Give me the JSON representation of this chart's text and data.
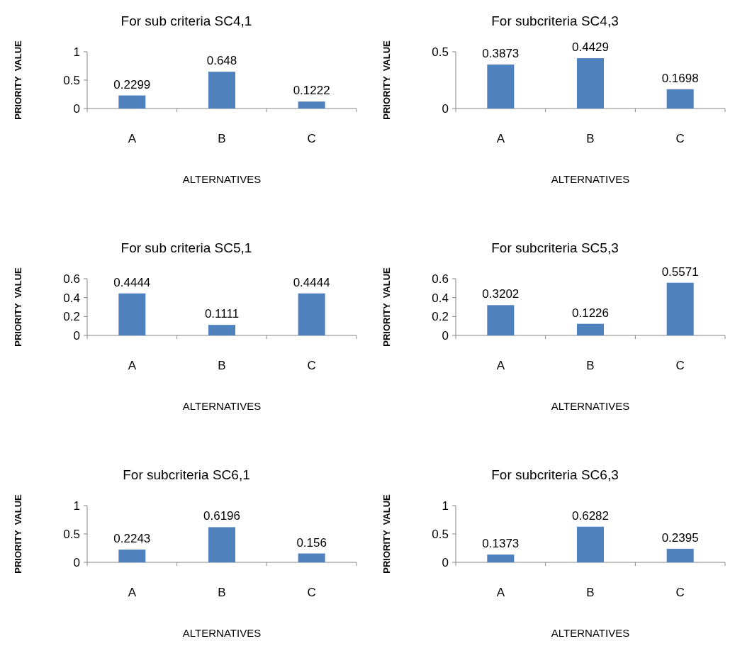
{
  "chart_data": [
    {
      "type": "bar",
      "title": "For sub criteria SC4,1",
      "xlabel": "ALTERNATIVES",
      "ylabel": "PRIORITY  VALUE",
      "categories": [
        "A",
        "B",
        "C"
      ],
      "values": [
        0.2299,
        0.648,
        0.1222
      ],
      "color": "#4f81bd",
      "ylim": [
        0,
        1
      ],
      "yticks": [
        0,
        0.5,
        1
      ],
      "data_labels": true
    },
    {
      "type": "bar",
      "title": "For subcriteria SC4,3",
      "xlabel": "ALTERNATIVES",
      "ylabel": "PRIORITY  VALUE",
      "categories": [
        "A",
        "B",
        "C"
      ],
      "values": [
        0.3873,
        0.4429,
        0.1698
      ],
      "color": "#4f81bd",
      "ylim": [
        0,
        0.5
      ],
      "yticks": [
        0,
        0.5
      ],
      "data_labels": true
    },
    {
      "type": "bar",
      "title": "For sub criteria SC5,1",
      "xlabel": "ALTERNATIVES",
      "ylabel": "PRIORITY  VALUE",
      "categories": [
        "A",
        "B",
        "C"
      ],
      "values": [
        0.4444,
        0.1111,
        0.4444
      ],
      "color": "#4f81bd",
      "ylim": [
        0,
        0.6
      ],
      "yticks": [
        0,
        0.2,
        0.4,
        0.6
      ],
      "data_labels": true
    },
    {
      "type": "bar",
      "title": "For subcriteria SC5,3",
      "xlabel": "ALTERNATIVES",
      "ylabel": "PRIORITY  VALUE",
      "categories": [
        "A",
        "B",
        "C"
      ],
      "values": [
        0.3202,
        0.1226,
        0.5571
      ],
      "color": "#4f81bd",
      "ylim": [
        0,
        0.6
      ],
      "yticks": [
        0,
        0.2,
        0.4,
        0.6
      ],
      "data_labels": true
    },
    {
      "type": "bar",
      "title": "For subcriteria SC6,1",
      "xlabel": "ALTERNATIVES",
      "ylabel": "PRIORITY  VALUE",
      "categories": [
        "A",
        "B",
        "C"
      ],
      "values": [
        0.2243,
        0.6196,
        0.156
      ],
      "color": "#4f81bd",
      "ylim": [
        0,
        1
      ],
      "yticks": [
        0,
        0.5,
        1
      ],
      "data_labels": true
    },
    {
      "type": "bar",
      "title": "For subcriteria SC6,3",
      "xlabel": "ALTERNATIVES",
      "ylabel": "PRIORITY  VALUE",
      "categories": [
        "A",
        "B",
        "C"
      ],
      "values": [
        0.1373,
        0.6282,
        0.2395
      ],
      "color": "#4f81bd",
      "ylim": [
        0,
        1
      ],
      "yticks": [
        0,
        0.5,
        1
      ],
      "data_labels": true
    }
  ]
}
